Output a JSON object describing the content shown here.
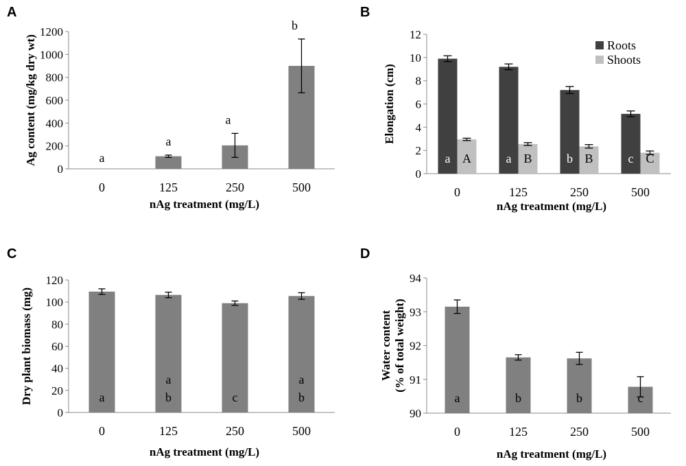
{
  "chart_data": [
    {
      "panel": "A",
      "type": "bar",
      "categories": [
        "0",
        "125",
        "250",
        "500"
      ],
      "values": [
        0,
        110,
        205,
        900
      ],
      "errors": [
        0,
        10,
        105,
        235
      ],
      "sig_labels": [
        "a",
        "a",
        "a",
        "b"
      ],
      "xlabel": "nAg treatment (mg/L)",
      "ylabel": "Ag content (mg/kg dry wt)",
      "ylim": [
        0,
        1200
      ],
      "yticks": [
        0,
        200,
        400,
        600,
        800,
        1000,
        1200
      ],
      "colors": [
        "#808080"
      ]
    },
    {
      "panel": "B",
      "type": "bar",
      "categories": [
        "0",
        "125",
        "250",
        "500"
      ],
      "series": [
        {
          "name": "Roots",
          "values": [
            9.9,
            9.2,
            7.2,
            5.15
          ],
          "errors": [
            0.25,
            0.25,
            0.3,
            0.25
          ],
          "sig_labels": [
            "a",
            "a",
            "b",
            "c"
          ],
          "color": "#404040"
        },
        {
          "name": "Shoots",
          "values": [
            2.95,
            2.55,
            2.35,
            1.8
          ],
          "errors": [
            0.1,
            0.12,
            0.15,
            0.15
          ],
          "sig_labels": [
            "A",
            "B",
            "B",
            "C"
          ],
          "color": "#c0c0c0"
        }
      ],
      "xlabel": "nAg treatment (mg/L)",
      "ylabel": "Elongation (cm)",
      "ylim": [
        0,
        12
      ],
      "yticks": [
        0,
        2,
        4,
        6,
        8,
        10,
        12
      ],
      "legend": "top-right"
    },
    {
      "panel": "C",
      "type": "bar",
      "categories": [
        "0",
        "125",
        "250",
        "500"
      ],
      "values": [
        109.5,
        106.5,
        99,
        105.5
      ],
      "errors": [
        2.5,
        2.5,
        2,
        3
      ],
      "sig_labels": [
        [
          "a"
        ],
        [
          "a",
          "b"
        ],
        [
          "c"
        ],
        [
          "a",
          "b"
        ]
      ],
      "xlabel": "nAg treatment (mg/L)",
      "ylabel": "Dry plant biomass (mg)",
      "ylim": [
        0,
        120
      ],
      "yticks": [
        0,
        20,
        40,
        60,
        80,
        100,
        120
      ],
      "colors": [
        "#808080"
      ]
    },
    {
      "panel": "D",
      "type": "bar",
      "categories": [
        "0",
        "125",
        "250",
        "500"
      ],
      "values": [
        93.15,
        91.65,
        91.62,
        90.78
      ],
      "errors": [
        0.2,
        0.08,
        0.18,
        0.3
      ],
      "sig_labels": [
        "a",
        "b",
        "b",
        "c"
      ],
      "xlabel": "nAg treatment (mg/L)",
      "ylabel_lines": [
        "Water content",
        "(% of total weight)"
      ],
      "ylim": [
        90,
        94
      ],
      "yticks": [
        90,
        91,
        92,
        93,
        94
      ],
      "colors": [
        "#808080"
      ]
    }
  ]
}
